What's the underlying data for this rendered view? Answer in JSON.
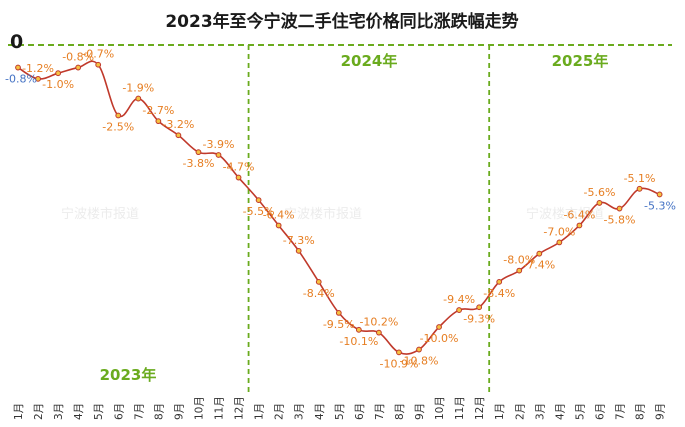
{
  "chart_data": {
    "type": "line",
    "title": "2023年至今宁波二手住宅价格同比涨跌幅走势",
    "zero_label": "0",
    "watermark": "宁波楼市报道",
    "year_labels": [
      "2023年",
      "2024年",
      "2025年"
    ],
    "categories": [
      "1月",
      "2月",
      "3月",
      "4月",
      "5月",
      "6月",
      "7月",
      "8月",
      "9月",
      "10月",
      "11月",
      "12月",
      "1月",
      "2月",
      "3月",
      "4月",
      "5月",
      "6月",
      "7月",
      "8月",
      "9月",
      "10月",
      "11月",
      "12月",
      "1月",
      "2月",
      "3月",
      "4月",
      "5月",
      "6月",
      "7月",
      "8月",
      "9月"
    ],
    "values": [
      -0.8,
      -1.2,
      -1.0,
      -0.8,
      -0.7,
      -2.5,
      -1.9,
      -2.7,
      -3.2,
      -3.8,
      -3.9,
      -4.7,
      -5.5,
      -6.4,
      -7.3,
      -8.4,
      -9.5,
      -10.1,
      -10.2,
      -10.9,
      -10.8,
      -10.0,
      -9.4,
      -9.3,
      -8.4,
      -8.0,
      -7.4,
      -7.0,
      -6.4,
      -5.6,
      -5.8,
      -5.1,
      -5.3
    ],
    "point_labels": [
      "-0.8%",
      "-1.2%",
      "-1.0%",
      "-0.8%",
      "-0.7%",
      "-2.5%",
      "-1.9%",
      "-2.7%",
      "-3.2%",
      "-3.8%",
      "-3.9%",
      "-4.7%",
      "-5.5%",
      "-6.4%",
      "-7.3%",
      "-8.4%",
      "-9.5%",
      "-10.1%",
      "-10.2%",
      "-10.9%",
      "-10.8%",
      "-10.0%",
      "-9.4%",
      "-9.3%",
      "-8.4%",
      "-8.0%",
      "-7.4%",
      "-7.0%",
      "-6.4%",
      "-5.6%",
      "-5.8%",
      "-5.1%",
      "-5.3%"
    ],
    "label_positions": [
      "below",
      "above",
      "below",
      "above",
      "above",
      "below",
      "above",
      "above",
      "above",
      "below",
      "above",
      "above",
      "below",
      "above",
      "above",
      "below",
      "below",
      "below",
      "above",
      "below",
      "below",
      "below",
      "above",
      "below",
      "below",
      "above",
      "below",
      "above",
      "above",
      "above",
      "below",
      "above",
      "below"
    ],
    "highlight_label_indices": [
      0,
      32
    ],
    "ylim": [
      -11.2,
      0
    ],
    "grid": false,
    "colors": {
      "line": "#c0392b",
      "marker_fill": "#f5c242",
      "marker_stroke": "#c0392b",
      "label": "#e67e22",
      "label_highlight": "#4472c4",
      "zero_line": "#6aab1e",
      "year_divider": "#6aab1e",
      "year_text": "#6aab1e"
    }
  }
}
